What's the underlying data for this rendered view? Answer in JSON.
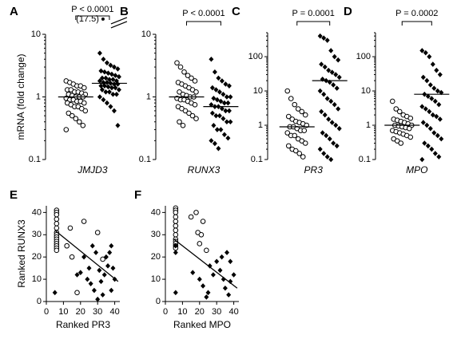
{
  "chart_data": [
    {
      "type": "strip",
      "panel": "A",
      "ylabel": "mRNA (fold change)",
      "xlabel": "JMJD3",
      "annotation": "P < 0.0001",
      "log": true,
      "ylim": [
        0.1,
        10
      ],
      "yticks": [
        0.1,
        1,
        10
      ],
      "outlier": {
        "value": 17.5,
        "label": "(17.5)"
      },
      "series": [
        {
          "marker": "open",
          "color": "#000000",
          "center": 1.0,
          "values": [
            1.8,
            1.7,
            1.6,
            1.5,
            1.5,
            1.4,
            1.3,
            1.3,
            1.2,
            1.2,
            1.15,
            1.1,
            1.1,
            1.05,
            1.0,
            1.0,
            1.0,
            0.95,
            0.9,
            0.9,
            0.85,
            0.85,
            0.8,
            0.8,
            0.75,
            0.7,
            0.7,
            0.65,
            0.6,
            0.55,
            0.5,
            0.45,
            0.4,
            0.35,
            0.3
          ]
        },
        {
          "marker": "filled",
          "color": "#000000",
          "center": 1.65,
          "values": [
            5,
            4,
            3.5,
            3.2,
            3,
            2.8,
            2.6,
            2.5,
            2.4,
            2.3,
            2.2,
            2.1,
            2,
            2,
            1.9,
            1.9,
            1.8,
            1.8,
            1.7,
            1.7,
            1.65,
            1.6,
            1.6,
            1.5,
            1.5,
            1.45,
            1.4,
            1.4,
            1.3,
            1.3,
            1.2,
            1.2,
            1.1,
            1.1,
            1,
            0.9,
            0.8,
            0.7,
            0.6,
            0.35
          ]
        }
      ]
    },
    {
      "type": "strip",
      "panel": "B",
      "xlabel": "RUNX3",
      "annotation": "P < 0.0001",
      "log": true,
      "ylim": [
        0.1,
        10
      ],
      "yticks": [
        0.1,
        1,
        10
      ],
      "series": [
        {
          "marker": "open",
          "color": "#000000",
          "center": 1.0,
          "values": [
            3.5,
            3,
            2.5,
            2.2,
            2,
            1.8,
            1.7,
            1.6,
            1.5,
            1.4,
            1.3,
            1.2,
            1.2,
            1.1,
            1.05,
            1,
            1,
            0.95,
            0.9,
            0.9,
            0.85,
            0.8,
            0.75,
            0.7,
            0.65,
            0.6,
            0.55,
            0.5,
            0.45,
            0.4,
            0.35
          ]
        },
        {
          "marker": "filled",
          "color": "#000000",
          "center": 0.7,
          "values": [
            4,
            2.5,
            2,
            1.8,
            1.6,
            1.5,
            1.4,
            1.3,
            1.2,
            1.1,
            1,
            1,
            0.95,
            0.9,
            0.85,
            0.8,
            0.8,
            0.75,
            0.7,
            0.7,
            0.65,
            0.6,
            0.6,
            0.55,
            0.5,
            0.5,
            0.45,
            0.4,
            0.4,
            0.35,
            0.3,
            0.3,
            0.25,
            0.22,
            0.2,
            0.18,
            0.15
          ]
        }
      ]
    },
    {
      "type": "strip",
      "panel": "C",
      "xlabel": "PR3",
      "annotation": "P = 0.0001",
      "log": true,
      "ylim": [
        0.1,
        500
      ],
      "yticks": [
        0.1,
        1,
        10,
        100
      ],
      "series": [
        {
          "marker": "open",
          "color": "#000000",
          "center": 0.9,
          "values": [
            10,
            6,
            4,
            3,
            2.5,
            2,
            1.8,
            1.5,
            1.3,
            1.2,
            1.1,
            1,
            0.9,
            0.9,
            0.8,
            0.7,
            0.7,
            0.6,
            0.5,
            0.5,
            0.4,
            0.35,
            0.3,
            0.25,
            0.2,
            0.18,
            0.15,
            0.12
          ]
        },
        {
          "marker": "filled",
          "color": "#000000",
          "center": 20,
          "values": [
            400,
            350,
            300,
            150,
            100,
            80,
            60,
            50,
            40,
            35,
            30,
            25,
            22,
            20,
            18,
            15,
            12,
            10,
            8,
            6,
            5,
            4,
            3,
            2.5,
            2,
            1.5,
            1.2,
            1,
            0.8,
            0.6,
            0.5,
            0.4,
            0.3,
            0.25,
            0.2,
            0.15,
            0.12,
            0.1
          ]
        }
      ]
    },
    {
      "type": "strip",
      "panel": "D",
      "xlabel": "MPO",
      "annotation": "P = 0.0002",
      "log": true,
      "ylim": [
        0.1,
        500
      ],
      "yticks": [
        0.1,
        1,
        10,
        100
      ],
      "series": [
        {
          "marker": "open",
          "color": "#000000",
          "center": 1.0,
          "values": [
            5,
            3,
            2.5,
            2,
            1.8,
            1.6,
            1.5,
            1.4,
            1.3,
            1.2,
            1.1,
            1,
            1,
            0.95,
            0.9,
            0.85,
            0.8,
            0.7,
            0.65,
            0.6,
            0.55,
            0.5,
            0.45,
            0.4,
            0.35,
            0.3
          ]
        },
        {
          "marker": "filled",
          "color": "#000000",
          "center": 8,
          "values": [
            150,
            130,
            100,
            60,
            40,
            30,
            25,
            20,
            15,
            12,
            10,
            9,
            8,
            7,
            6,
            5,
            4,
            3.5,
            3,
            2.5,
            2,
            1.8,
            1.5,
            1.2,
            1,
            0.8,
            0.6,
            0.5,
            0.4,
            0.3,
            0.25,
            0.2,
            0.15,
            0.12,
            0.1
          ]
        }
      ]
    },
    {
      "type": "scatter",
      "panel": "E",
      "ylabel": "Ranked RUNX3",
      "xlabel": "Ranked PR3",
      "xlim": [
        0,
        43
      ],
      "ylim": [
        0,
        43
      ],
      "xticks": [
        0,
        10,
        20,
        30,
        40
      ],
      "yticks": [
        0,
        10,
        20,
        30,
        40
      ],
      "fit_line": {
        "x": [
          5,
          42
        ],
        "y": [
          32,
          9
        ]
      },
      "series": [
        {
          "marker": "open",
          "color": "#000000",
          "x": [
            6,
            6,
            6,
            6,
            6,
            6,
            6,
            6,
            6,
            6,
            6,
            6,
            6,
            6,
            6,
            14,
            12,
            15,
            18,
            22,
            30,
            33
          ],
          "y": [
            41,
            40,
            39,
            37,
            35,
            33,
            31,
            30,
            29,
            28,
            27,
            26,
            25,
            24,
            23,
            33,
            25,
            20,
            4,
            36,
            31,
            19
          ]
        },
        {
          "marker": "filled",
          "color": "#000000",
          "x": [
            5,
            18,
            20,
            22,
            24,
            25,
            26,
            28,
            27,
            29,
            30,
            31,
            32,
            33,
            34,
            35,
            36,
            37,
            38,
            39,
            40,
            38
          ],
          "y": [
            4,
            12,
            13,
            20,
            10,
            15,
            8,
            5,
            25,
            22,
            1,
            14,
            9,
            3,
            12,
            20,
            16,
            22,
            5,
            15,
            10,
            25
          ]
        }
      ]
    },
    {
      "type": "scatter",
      "panel": "F",
      "xlabel": "Ranked MPO",
      "xlim": [
        0,
        43
      ],
      "ylim": [
        0,
        43
      ],
      "xticks": [
        0,
        10,
        20,
        30,
        40
      ],
      "yticks": [
        0,
        10,
        20,
        30,
        40
      ],
      "fit_line": {
        "x": [
          5,
          42
        ],
        "y": [
          28,
          6
        ]
      },
      "series": [
        {
          "marker": "open",
          "color": "#000000",
          "x": [
            6,
            6,
            6,
            6,
            6,
            6,
            6,
            6,
            6,
            6,
            6,
            6,
            6,
            15,
            18,
            19,
            21,
            22,
            20,
            24
          ],
          "y": [
            42,
            41,
            40,
            38,
            36,
            34,
            32,
            30,
            28,
            27,
            26,
            25,
            24,
            38,
            40,
            31,
            30,
            36,
            26,
            23
          ]
        },
        {
          "marker": "filled",
          "color": "#000000",
          "x": [
            6,
            6,
            6,
            16,
            20,
            22,
            24,
            25,
            26,
            28,
            30,
            32,
            33,
            34,
            35,
            36,
            37,
            38,
            40,
            38
          ],
          "y": [
            25,
            22,
            4,
            13,
            10,
            7,
            2,
            4,
            16,
            12,
            18,
            14,
            20,
            10,
            6,
            22,
            3,
            9,
            12,
            18
          ]
        }
      ]
    }
  ]
}
